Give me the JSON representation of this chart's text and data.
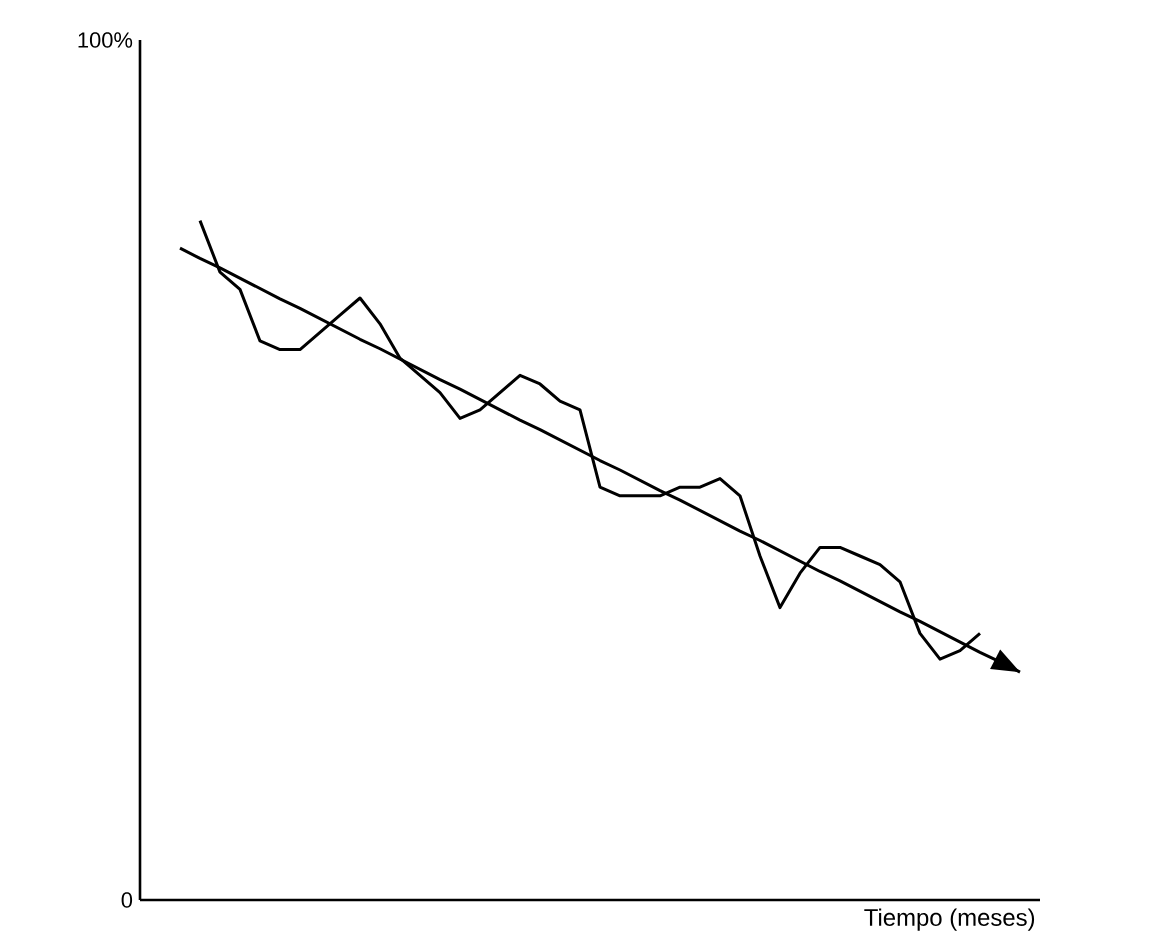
{
  "chart_data": {
    "type": "line",
    "xlabel": "Tiempo (meses)",
    "categories": [
      null,
      null,
      null,
      null,
      null,
      null,
      null,
      null,
      null,
      null,
      null,
      null,
      null,
      null,
      null,
      null,
      null,
      null,
      null,
      null,
      null,
      null,
      null,
      null,
      null,
      null,
      null,
      null,
      null,
      null,
      null,
      null,
      null,
      null,
      null,
      null,
      null,
      null,
      null,
      null,
      null,
      null,
      null
    ],
    "ylim": [
      0,
      100
    ],
    "yticks": [
      0,
      {
        "value": 100,
        "label": "100%"
      }
    ],
    "series": [
      {
        "color": "#000000",
        "values": [
          null,
          79,
          73,
          71,
          65,
          64,
          64,
          66,
          68,
          70,
          67,
          63,
          61,
          59,
          56,
          57,
          59,
          61,
          60,
          58,
          57,
          48,
          47,
          47,
          47,
          48,
          48,
          49,
          47,
          40,
          34,
          38,
          41,
          41,
          40,
          39,
          37,
          31,
          28,
          29,
          31,
          null,
          null
        ]
      },
      {
        "type": "line",
        "color": "#000000",
        "values": [
          75.8,
          74.6,
          73.5,
          72.3,
          71.1,
          69.9,
          68.8,
          67.6,
          66.4,
          65.2,
          64.1,
          62.9,
          61.7,
          60.5,
          59.4,
          58.2,
          57.0,
          55.8,
          54.7,
          53.5,
          52.3,
          51.1,
          50.0,
          48.8,
          47.6,
          46.5,
          45.3,
          44.1,
          42.9,
          41.8,
          40.6,
          39.4,
          38.2,
          37.1,
          35.9,
          34.7,
          33.5,
          32.4,
          31.2,
          30.0,
          28.8,
          27.7,
          26.5
        ]
      }
    ]
  }
}
